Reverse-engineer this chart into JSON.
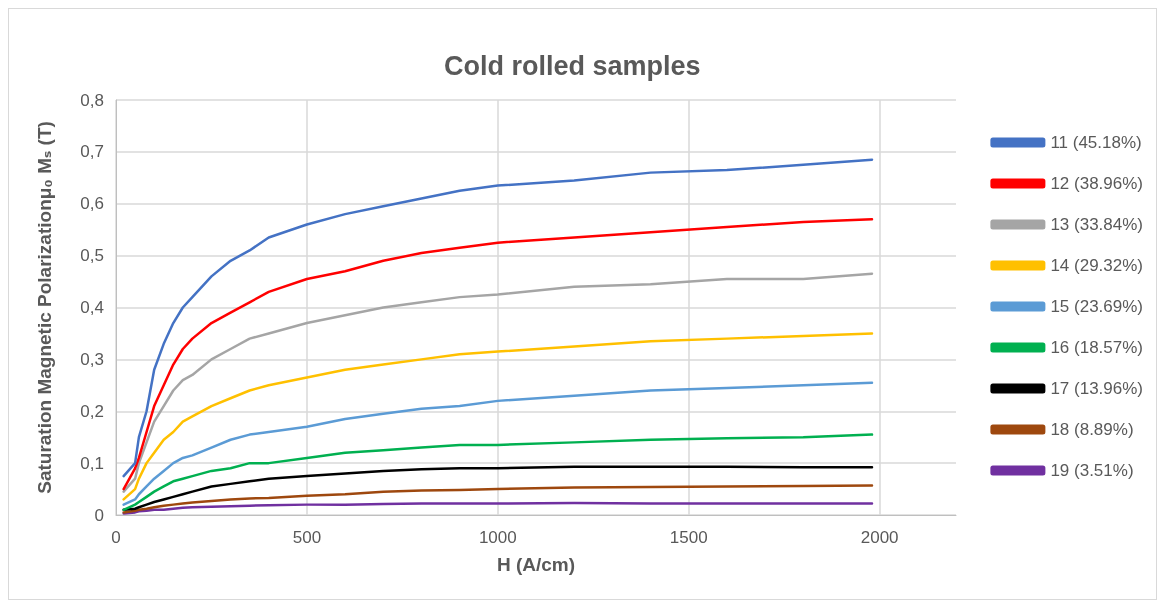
{
  "chart_data": {
    "type": "line",
    "title": "Cold rolled samples",
    "xlabel": "H (A/cm)",
    "ylabel": "Saturation Magnetic Polarizationμ₀ Mₛ (T)",
    "x": [
      20,
      50,
      60,
      80,
      100,
      125,
      150,
      175,
      200,
      250,
      300,
      350,
      400,
      500,
      600,
      700,
      800,
      900,
      1000,
      1200,
      1400,
      1600,
      1800,
      1980
    ],
    "series": [
      {
        "name": "11 (45.18%)",
        "color": "#4472c4",
        "values": [
          0.075,
          0.1,
          0.15,
          0.2,
          0.28,
          0.33,
          0.37,
          0.4,
          0.42,
          0.46,
          0.49,
          0.51,
          0.535,
          0.56,
          0.58,
          0.595,
          0.61,
          0.625,
          0.635,
          0.645,
          0.66,
          0.665,
          0.675,
          0.685
        ]
      },
      {
        "name": "12 (38.96%)",
        "color": "#ff0000",
        "values": [
          0.05,
          0.09,
          0.11,
          0.16,
          0.21,
          0.25,
          0.29,
          0.32,
          0.34,
          0.37,
          0.39,
          0.41,
          0.43,
          0.455,
          0.47,
          0.49,
          0.505,
          0.515,
          0.525,
          0.535,
          0.545,
          0.555,
          0.565,
          0.57
        ]
      },
      {
        "name": "13 (33.84%)",
        "color": "#a5a5a5",
        "values": [
          0.045,
          0.07,
          0.1,
          0.14,
          0.18,
          0.21,
          0.24,
          0.26,
          0.27,
          0.3,
          0.32,
          0.34,
          0.35,
          0.37,
          0.385,
          0.4,
          0.41,
          0.42,
          0.425,
          0.44,
          0.445,
          0.455,
          0.455,
          0.465
        ]
      },
      {
        "name": "14 (29.32%)",
        "color": "#ffc000",
        "values": [
          0.03,
          0.05,
          0.07,
          0.1,
          0.12,
          0.145,
          0.16,
          0.18,
          0.19,
          0.21,
          0.225,
          0.24,
          0.25,
          0.265,
          0.28,
          0.29,
          0.3,
          0.31,
          0.315,
          0.325,
          0.335,
          0.34,
          0.345,
          0.35
        ]
      },
      {
        "name": "15 (23.69%)",
        "color": "#5b9bd5",
        "values": [
          0.02,
          0.03,
          0.04,
          0.055,
          0.07,
          0.085,
          0.1,
          0.11,
          0.115,
          0.13,
          0.145,
          0.155,
          0.16,
          0.17,
          0.185,
          0.195,
          0.205,
          0.21,
          0.22,
          0.23,
          0.24,
          0.245,
          0.25,
          0.255
        ]
      },
      {
        "name": "16 (18.57%)",
        "color": "#00b050",
        "values": [
          0.01,
          0.02,
          0.025,
          0.035,
          0.045,
          0.055,
          0.065,
          0.07,
          0.075,
          0.085,
          0.09,
          0.1,
          0.1,
          0.11,
          0.12,
          0.125,
          0.13,
          0.135,
          0.135,
          0.14,
          0.145,
          0.148,
          0.15,
          0.155
        ]
      },
      {
        "name": "17 (13.96%)",
        "color": "#000000",
        "values": [
          0.01,
          0.012,
          0.015,
          0.02,
          0.025,
          0.03,
          0.035,
          0.04,
          0.045,
          0.055,
          0.06,
          0.065,
          0.07,
          0.075,
          0.08,
          0.085,
          0.088,
          0.09,
          0.09,
          0.093,
          0.093,
          0.093,
          0.092,
          0.092
        ]
      },
      {
        "name": "18 (8.89%)",
        "color": "#9e480e",
        "values": [
          0.005,
          0.008,
          0.01,
          0.012,
          0.015,
          0.018,
          0.02,
          0.022,
          0.024,
          0.027,
          0.03,
          0.032,
          0.033,
          0.037,
          0.04,
          0.045,
          0.047,
          0.048,
          0.05,
          0.053,
          0.054,
          0.055,
          0.056,
          0.057
        ]
      },
      {
        "name": "19 (3.51%)",
        "color": "#7030a0",
        "values": [
          0.003,
          0.005,
          0.007,
          0.008,
          0.01,
          0.01,
          0.012,
          0.014,
          0.015,
          0.016,
          0.017,
          0.018,
          0.019,
          0.02,
          0.02,
          0.021,
          0.022,
          0.022,
          0.022,
          0.023,
          0.022,
          0.022,
          0.022,
          0.022
        ]
      }
    ],
    "xlim": [
      0,
      2200
    ],
    "xticks": [
      0,
      500,
      1000,
      1500,
      2000
    ],
    "ylim": [
      0,
      0.8
    ],
    "yticks": [
      0,
      {
        "value": 0.1,
        "label": "0,1"
      },
      {
        "value": 0.2,
        "label": "0,2"
      },
      {
        "value": 0.3,
        "label": "0,3"
      },
      {
        "value": 0.4,
        "label": "0,4"
      },
      {
        "value": 0.5,
        "label": "0,5"
      },
      {
        "value": 0.6,
        "label": "0,6"
      },
      {
        "value": 0.7,
        "label": "0,7"
      },
      {
        "value": 0.8,
        "label": "0,8"
      }
    ],
    "grid": true,
    "legend": "right",
    "marker": "none",
    "line_style": "solid"
  }
}
